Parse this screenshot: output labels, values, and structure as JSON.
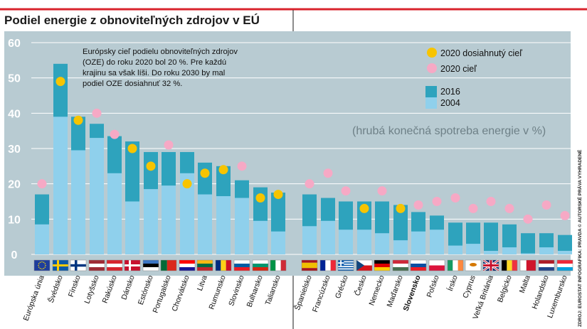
{
  "chart_data": {
    "type": "bar",
    "title": "Podiel energie z obnoviteľných zdrojov v EÚ",
    "note": [
      "Európsky cieľ podielu obnoviteľných zdrojov",
      "(OZE) do roku 2020 bol 20 %. Pre každú",
      "krajinu sa však líši. Do roku 2030 by mal",
      "podiel OZE dosiahnuť 32 %."
    ],
    "subtitle": "(hrubá konečná spotreba energie v %)",
    "ylim": [
      0,
      60
    ],
    "yticks": [
      "0",
      "10",
      "20",
      "30",
      "40",
      "50",
      "60"
    ],
    "grid": true,
    "legend_position": "top-right",
    "legend": {
      "achieved": "2020 dosiahnutý cieľ",
      "target": "2020 cieľ",
      "y2016": "2016",
      "y2004": "2004"
    },
    "colors": {
      "background": "#b8cbd2",
      "bar_2016": "#2ea3bd",
      "bar_2004": "#8fd0ec",
      "achieved_dot": "#f7c400",
      "target_dot": "#f6a9c5",
      "title_rule": "#d9232d"
    },
    "categories": [
      "Európska únia",
      "Švédsko",
      "Fínsko",
      "Lotyšsko",
      "Rakúsko",
      "Dánsko",
      "Estónsko",
      "Portugalsko",
      "Chorvátsko",
      "Litva",
      "Rumunsko",
      "Slovinsko",
      "Bulharsko",
      "Taliansko",
      "Španielsko",
      "Francúzsko",
      "Grécko",
      "Česko",
      "Nemecko",
      "Maďarsko",
      "Slovensko",
      "Poľsko",
      "Írsko",
      "Cyprus",
      "Veľká Británia",
      "Belgicko",
      "Malta",
      "Holandsko",
      "Luxembursko"
    ],
    "highlight_category": "Slovensko",
    "series": [
      {
        "name": "2016",
        "values": [
          17,
          54,
          39,
          37,
          33.5,
          32,
          29,
          29,
          29,
          26,
          25,
          21,
          19,
          17.5,
          17,
          16,
          15,
          15,
          15,
          14,
          12,
          11,
          9,
          9,
          9,
          8.5,
          6,
          6,
          5.5
        ]
      },
      {
        "name": "2004",
        "values": [
          8.5,
          39,
          29.5,
          33,
          23,
          15,
          18.5,
          19.5,
          23,
          17,
          16.5,
          16,
          9.5,
          6.5,
          8,
          9.5,
          7,
          7,
          6,
          4,
          6.5,
          7,
          2.5,
          3,
          1,
          2,
          0.3,
          2,
          1
        ]
      },
      {
        "name": "2020 dosiahnutý cieľ",
        "values": [
          null,
          49,
          38,
          null,
          null,
          30,
          25,
          null,
          20,
          23,
          24,
          null,
          16,
          17,
          null,
          null,
          null,
          13,
          null,
          13,
          null,
          null,
          null,
          null,
          null,
          null,
          null,
          null,
          null
        ]
      },
      {
        "name": "2020 cieľ",
        "values": [
          20,
          null,
          null,
          40,
          34,
          null,
          null,
          31,
          null,
          null,
          null,
          25,
          null,
          null,
          20,
          23,
          18,
          null,
          18,
          null,
          14,
          15,
          16,
          13,
          15,
          13,
          10,
          14,
          11
        ]
      }
    ]
  },
  "source_text": "ZDROJ: EUROSTAT INFOGRAFIKA: PRAVDA © AUTORSKÉ PRÁVA VYHRADENÉ"
}
